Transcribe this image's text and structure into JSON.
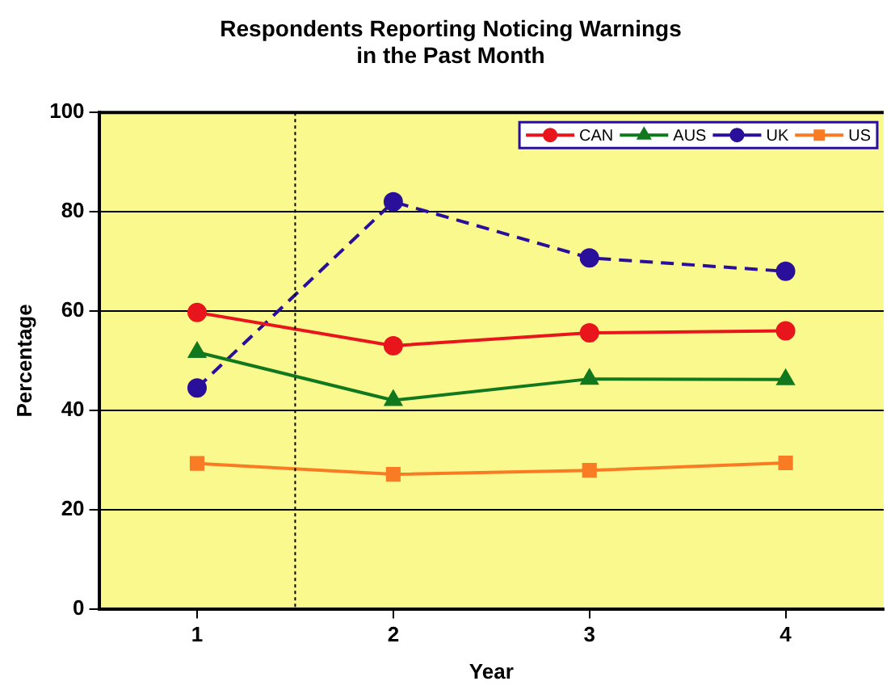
{
  "chart_data": {
    "type": "line",
    "title": "Respondents Reporting Noticing Warnings in the Past Month",
    "xlabel": "Year",
    "ylabel": "Percentage",
    "x": [
      1,
      2,
      3,
      4
    ],
    "xlim": [
      0.5,
      4.5
    ],
    "xticks": [
      1,
      2,
      3,
      4
    ],
    "ylim": [
      0,
      100
    ],
    "yticks": [
      0,
      20,
      40,
      60,
      80,
      100
    ],
    "grid": "y",
    "legend": "top right",
    "ref_lines": [
      {
        "axis": "x",
        "value": 1.5,
        "color": "#000000",
        "line_style": "dotted"
      }
    ],
    "series": [
      {
        "name": "CAN",
        "color": "#e8161c",
        "marker": "circle",
        "line_style": "solid",
        "values": [
          59.7,
          53,
          55.6,
          56
        ]
      },
      {
        "name": "AUS",
        "color": "#11781e",
        "marker": "triangle",
        "line_style": "solid",
        "values": [
          51.7,
          42,
          46.3,
          46.2
        ]
      },
      {
        "name": "UK",
        "color": "#2a0f9a",
        "marker": "circle",
        "line_style": "dashed",
        "values": [
          44.5,
          82,
          70.7,
          68
        ]
      },
      {
        "name": "US",
        "color": "#f97c25",
        "marker": "square",
        "line_style": "solid",
        "values": [
          29.3,
          27.1,
          27.9,
          29.4
        ]
      }
    ]
  }
}
